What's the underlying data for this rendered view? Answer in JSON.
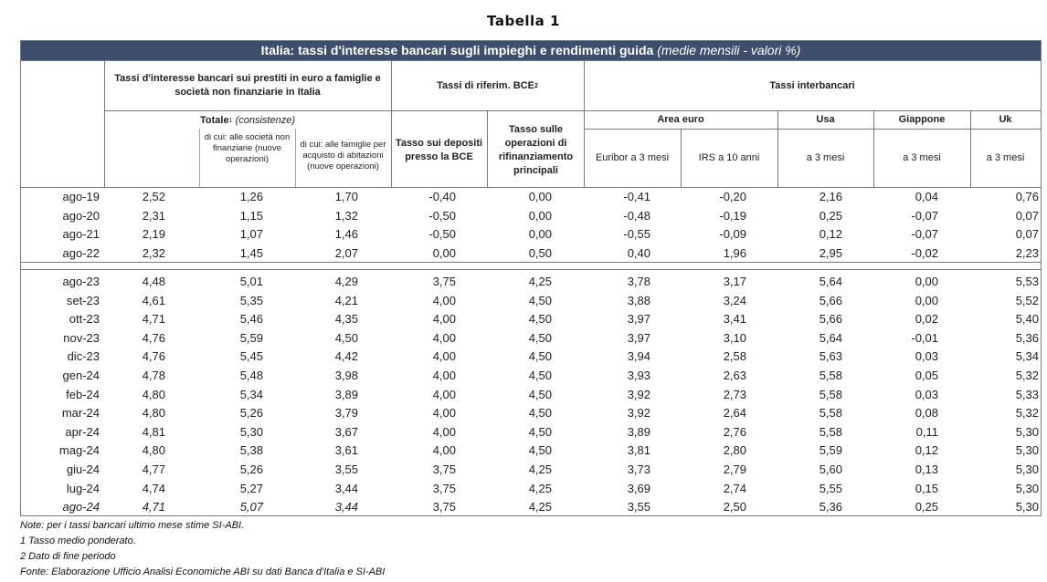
{
  "title": "Tabella 1",
  "banner": {
    "main": "Italia: tassi d'interesse bancari sugli impieghi e rendimenti guida",
    "sub": "(medie mensili - valori %)"
  },
  "headers": {
    "group_bank": "Tassi d'interesse bancari sui prestiti in euro a famiglie e società non finanziarie in Italia",
    "group_bce": "Tassi di riferim. BCE",
    "group_bce_sup": "2",
    "group_interbank": "Tassi interbancari",
    "totale": "Totale",
    "totale_sup": "1",
    "totale_note": "(consistenze)",
    "dicui_societa": "di cui: alle società non finanziarie (nuove operazioni)",
    "dicui_famiglie": "di cui: alle famiglie per acquisto di abitazioni (nuove operazioni)",
    "tasso_depositi": "Tasso sui depositi presso la BCE",
    "tasso_rifinanziamento": "Tasso sulle operazioni di rifinanziamento principali",
    "area_euro": "Area euro",
    "usa": "Usa",
    "giappone": "Giappone",
    "uk": "Uk",
    "euribor": "Euribor a 3 mesi",
    "irs": "IRS a 10 anni",
    "usa_3m": "a 3 mesi",
    "giappone_3m": "a 3 mesi",
    "uk_3m": "a 3 mesi"
  },
  "rows_top": [
    [
      "ago-19",
      "2,52",
      "1,26",
      "1,70",
      "-0,40",
      "0,00",
      "-0,41",
      "-0,20",
      "2,16",
      "0,04",
      "0,76"
    ],
    [
      "ago-20",
      "2,31",
      "1,15",
      "1,32",
      "-0,50",
      "0,00",
      "-0,48",
      "-0,19",
      "0,25",
      "-0,07",
      "0,07"
    ],
    [
      "ago-21",
      "2,19",
      "1,07",
      "1,46",
      "-0,50",
      "0,00",
      "-0,55",
      "-0,09",
      "0,12",
      "-0,07",
      "0,07"
    ],
    [
      "ago-22",
      "2,32",
      "1,45",
      "2,07",
      "0,00",
      "0,50",
      "0,40",
      "1,96",
      "2,95",
      "-0,02",
      "2,23"
    ]
  ],
  "rows_bottom": [
    [
      "ago-23",
      "4,48",
      "5,01",
      "4,29",
      "3,75",
      "4,25",
      "3,78",
      "3,17",
      "5,64",
      "0,00",
      "5,53"
    ],
    [
      "set-23",
      "4,61",
      "5,35",
      "4,21",
      "4,00",
      "4,50",
      "3,88",
      "3,24",
      "5,66",
      "0,00",
      "5,52"
    ],
    [
      "ott-23",
      "4,71",
      "5,46",
      "4,35",
      "4,00",
      "4,50",
      "3,97",
      "3,41",
      "5,66",
      "0,02",
      "5,40"
    ],
    [
      "nov-23",
      "4,76",
      "5,59",
      "4,50",
      "4,00",
      "4,50",
      "3,97",
      "3,10",
      "5,64",
      "-0,01",
      "5,36"
    ],
    [
      "dic-23",
      "4,76",
      "5,45",
      "4,42",
      "4,00",
      "4,50",
      "3,94",
      "2,58",
      "5,63",
      "0,03",
      "5,34"
    ],
    [
      "gen-24",
      "4,78",
      "5,48",
      "3,98",
      "4,00",
      "4,50",
      "3,93",
      "2,63",
      "5,58",
      "0,05",
      "5,32"
    ],
    [
      "feb-24",
      "4,80",
      "5,34",
      "3,89",
      "4,00",
      "4,50",
      "3,92",
      "2,73",
      "5,58",
      "0,03",
      "5,33"
    ],
    [
      "mar-24",
      "4,80",
      "5,26",
      "3,79",
      "4,00",
      "4,50",
      "3,92",
      "2,64",
      "5,58",
      "0,08",
      "5,32"
    ],
    [
      "apr-24",
      "4,81",
      "5,30",
      "3,67",
      "4,00",
      "4,50",
      "3,89",
      "2,76",
      "5,58",
      "0,11",
      "5,30"
    ],
    [
      "mag-24",
      "4,80",
      "5,38",
      "3,61",
      "4,00",
      "4,50",
      "3,81",
      "2,80",
      "5,59",
      "0,12",
      "5,30"
    ],
    [
      "giu-24",
      "4,77",
      "5,26",
      "3,55",
      "3,75",
      "4,25",
      "3,73",
      "2,79",
      "5,60",
      "0,13",
      "5,30"
    ],
    [
      "lug-24",
      "4,74",
      "5,27",
      "3,44",
      "3,75",
      "4,25",
      "3,69",
      "2,74",
      "5,55",
      "0,15",
      "5,30"
    ],
    [
      "ago-24",
      "4,71",
      "5,07",
      "3,44",
      "3,75",
      "4,25",
      "3,55",
      "2,50",
      "5,36",
      "0,25",
      "5,30"
    ]
  ],
  "italic_cols_last_row": 4,
  "notes": [
    "Note: per i tassi bancari ultimo mese stime SI-ABI.",
    "1 Tasso medio ponderato.",
    "2 Dato di fine periodo",
    "Fonte: Elaborazione Ufficio Analisi Economiche ABI su dati Banca d'Italia e SI-ABI"
  ]
}
